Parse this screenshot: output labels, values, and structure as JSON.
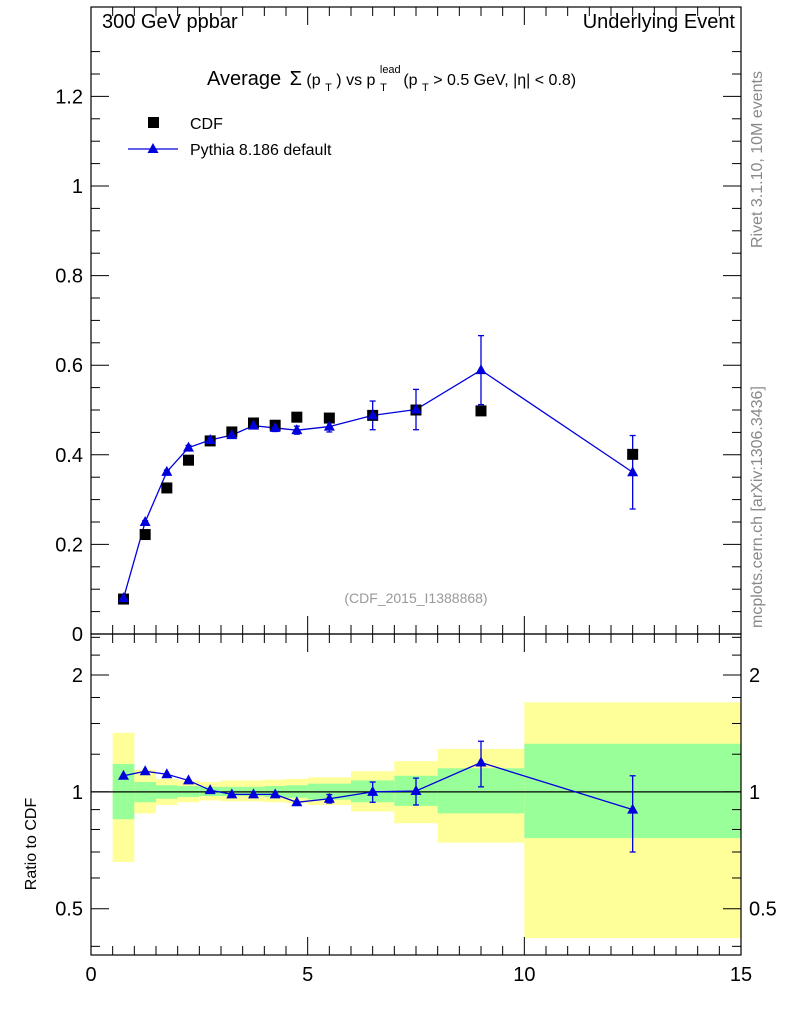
{
  "header": {
    "left": "300 GeV ppbar",
    "right": "Underlying Event"
  },
  "sidebar": {
    "rivet": "Rivet 3.1.10,  10M events",
    "source": "mcplots.cern.ch [arXiv:1306.3436]"
  },
  "reference": "(CDF_2015_I1388868)",
  "chart_data": [
    {
      "type": "scatter",
      "title": "Average Σ(p_T) vs p_T^lead (p_T > 0.5 GeV, |η| < 0.8)",
      "title_parts": {
        "a": "Average",
        "b": "Σ",
        "c": "(p",
        "d": "T",
        "e": ") vs p",
        "f": "lead",
        "g": "T",
        "h": "(p",
        "i": "T",
        "j": " > 0.5 GeV, |η| < 0.8)"
      },
      "xlim": [
        0,
        15
      ],
      "ylim": [
        0,
        1.3
      ],
      "yticks": [
        "0",
        "0.2",
        "0.4",
        "0.6",
        "0.8",
        "1",
        "1.2"
      ],
      "legend_placement": "top-left",
      "series": [
        {
          "name": "CDF",
          "marker": "square",
          "color": "#000000",
          "x": [
            0.75,
            1.25,
            1.75,
            2.25,
            2.75,
            3.25,
            3.75,
            4.25,
            4.75,
            5.5,
            6.5,
            7.5,
            9.0,
            12.5
          ],
          "y": [
            0.078,
            0.222,
            0.326,
            0.388,
            0.431,
            0.451,
            0.471,
            0.466,
            0.484,
            0.482,
            0.488,
            0.5,
            0.498,
            0.401
          ]
        },
        {
          "name": "Pythia 8.186 default",
          "marker": "triangle",
          "color": "#0000dd",
          "x": [
            0.75,
            1.25,
            1.75,
            2.25,
            2.75,
            3.25,
            3.75,
            4.25,
            4.75,
            5.5,
            6.5,
            7.5,
            9.0,
            12.5
          ],
          "y": [
            0.08,
            0.25,
            0.362,
            0.416,
            0.433,
            0.444,
            0.465,
            0.46,
            0.455,
            0.463,
            0.488,
            0.501,
            0.589,
            0.361
          ],
          "yerr": [
            0.002,
            0.003,
            0.004,
            0.005,
            0.005,
            0.006,
            0.007,
            0.008,
            0.009,
            0.012,
            0.032,
            0.045,
            0.077,
            0.082
          ]
        }
      ]
    },
    {
      "type": "scatter",
      "ylabel": "Ratio to CDF",
      "xlim": [
        0,
        15
      ],
      "ylim": [
        0.4,
        2.3
      ],
      "log_y": true,
      "xticks": [
        "0",
        "5",
        "10",
        "15"
      ],
      "yticks_left": [
        "0.5",
        "1",
        "2"
      ],
      "yticks_right": [
        "0.5",
        "1",
        "2"
      ],
      "reference_line": 1,
      "uncertainty_bands": {
        "bin_edges": [
          0.5,
          1.0,
          1.5,
          2.0,
          2.5,
          3.0,
          3.5,
          4.0,
          4.5,
          5.0,
          6.0,
          7.0,
          8.0,
          10.0,
          15.0
        ],
        "inner_color": "#99ff99",
        "outer_color": "#ffff99",
        "inner_lo": [
          0.85,
          0.94,
          0.96,
          0.97,
          0.975,
          0.975,
          0.975,
          0.97,
          0.965,
          0.955,
          0.94,
          0.92,
          0.88,
          0.76
        ],
        "inner_hi": [
          1.18,
          1.06,
          1.04,
          1.035,
          1.03,
          1.03,
          1.03,
          1.035,
          1.04,
          1.05,
          1.07,
          1.1,
          1.15,
          1.33
        ],
        "outer_lo": [
          0.66,
          0.88,
          0.925,
          0.94,
          0.95,
          0.945,
          0.945,
          0.94,
          0.935,
          0.925,
          0.89,
          0.83,
          0.74,
          0.42
        ],
        "outer_hi": [
          1.42,
          1.14,
          1.08,
          1.07,
          1.06,
          1.07,
          1.07,
          1.075,
          1.08,
          1.09,
          1.13,
          1.2,
          1.29,
          1.7
        ]
      },
      "series": [
        {
          "name": "Pythia 8.186 default",
          "marker": "triangle",
          "color": "#0000dd",
          "x": [
            0.75,
            1.25,
            1.75,
            2.25,
            2.75,
            3.25,
            3.75,
            4.25,
            4.75,
            5.5,
            6.5,
            7.5,
            9.0,
            12.5
          ],
          "y": [
            1.1,
            1.13,
            1.11,
            1.07,
            1.01,
            0.985,
            0.985,
            0.985,
            0.94,
            0.96,
            1.0,
            1.005,
            1.19,
            0.9
          ],
          "yerr": [
            0.01,
            0.01,
            0.01,
            0.012,
            0.012,
            0.013,
            0.014,
            0.016,
            0.018,
            0.024,
            0.06,
            0.08,
            0.16,
            0.2
          ]
        }
      ]
    }
  ]
}
